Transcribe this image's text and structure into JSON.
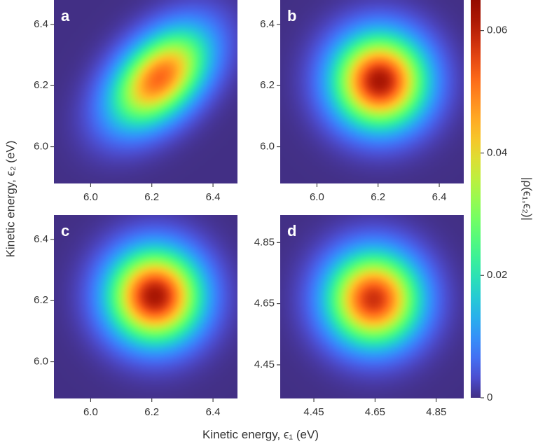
{
  "chart_data": [
    {
      "panel": "a",
      "type": "heatmap",
      "xlim": [
        5.88,
        6.48
      ],
      "ylim": [
        5.88,
        6.48
      ],
      "x_ticks": [
        "6.0",
        "6.2",
        "6.4"
      ],
      "y_ticks": [
        "6.0",
        "6.2",
        "6.4"
      ],
      "peak": {
        "x": 6.225,
        "y": 6.225,
        "value": 0.052
      },
      "sigma": [
        0.105,
        0.105
      ],
      "correlation": 0.45
    },
    {
      "panel": "b",
      "type": "heatmap",
      "xlim": [
        5.88,
        6.48
      ],
      "ylim": [
        5.88,
        6.48
      ],
      "x_ticks": [
        "6.0",
        "6.2",
        "6.4"
      ],
      "y_ticks": [
        "6.0",
        "6.2",
        "6.4"
      ],
      "peak": {
        "x": 6.205,
        "y": 6.215,
        "value": 0.062
      },
      "sigma": [
        0.1,
        0.1
      ],
      "correlation": 0.0
    },
    {
      "panel": "c",
      "type": "heatmap",
      "xlim": [
        5.88,
        6.48
      ],
      "ylim": [
        5.88,
        6.48
      ],
      "x_ticks": [
        "6.0",
        "6.2",
        "6.4"
      ],
      "y_ticks": [
        "6.0",
        "6.2",
        "6.4"
      ],
      "peak": {
        "x": 6.21,
        "y": 6.215,
        "value": 0.062
      },
      "sigma": [
        0.1,
        0.1
      ],
      "correlation": 0.0
    },
    {
      "panel": "d",
      "type": "heatmap",
      "xlim": [
        4.34,
        4.94
      ],
      "ylim": [
        4.34,
        4.94
      ],
      "x_ticks": [
        "4.45",
        "4.65",
        "4.85"
      ],
      "y_ticks": [
        "4.45",
        "4.65",
        "4.85"
      ],
      "peak": {
        "x": 4.645,
        "y": 4.665,
        "value": 0.058
      },
      "sigma": [
        0.1,
        0.1
      ],
      "correlation": 0.0
    }
  ],
  "colorbar": {
    "label": "|ρ(ϵ₁,ϵ₂)|",
    "range": [
      0,
      0.065
    ],
    "ticks": [
      "0",
      "0.02",
      "0.04",
      "0.06"
    ],
    "colormap": "turbo",
    "background_color": "#30123b"
  },
  "axes": {
    "xlabel": "Kinetic energy, ϵ₁ (eV)",
    "ylabel": "Kinetic energy, ϵ₂ (eV)"
  }
}
